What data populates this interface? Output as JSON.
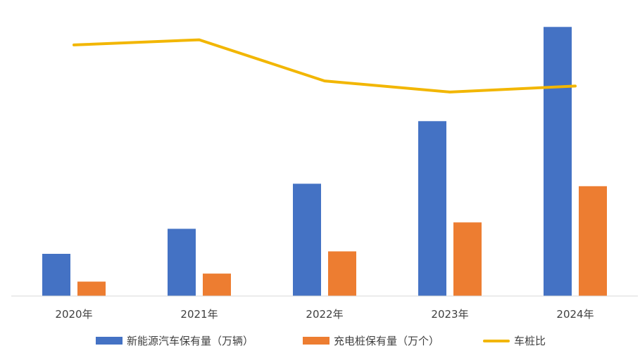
{
  "chart_data": {
    "type": "bar",
    "categories": [
      "2020年",
      "2021年",
      "2022年",
      "2023年",
      "2024年"
    ],
    "series": [
      {
        "name": "新能源汽车保有量（万辆）",
        "kind": "bar",
        "color": "#4472C4",
        "values": [
          492,
          784,
          1310,
          2041,
          3140
        ]
      },
      {
        "name": "充电桩保有量（万个）",
        "kind": "bar",
        "color": "#ED7D31",
        "values": [
          168,
          262,
          521,
          859,
          1282
        ]
      },
      {
        "name": "车桩比",
        "kind": "line",
        "color": "#F2B600",
        "values": [
          2.93,
          2.99,
          2.51,
          2.38,
          2.45
        ]
      }
    ],
    "ylim": [
      0,
      3200
    ],
    "y2lim": [
      0,
      3.2
    ],
    "grid": false,
    "legend": "bottom"
  }
}
